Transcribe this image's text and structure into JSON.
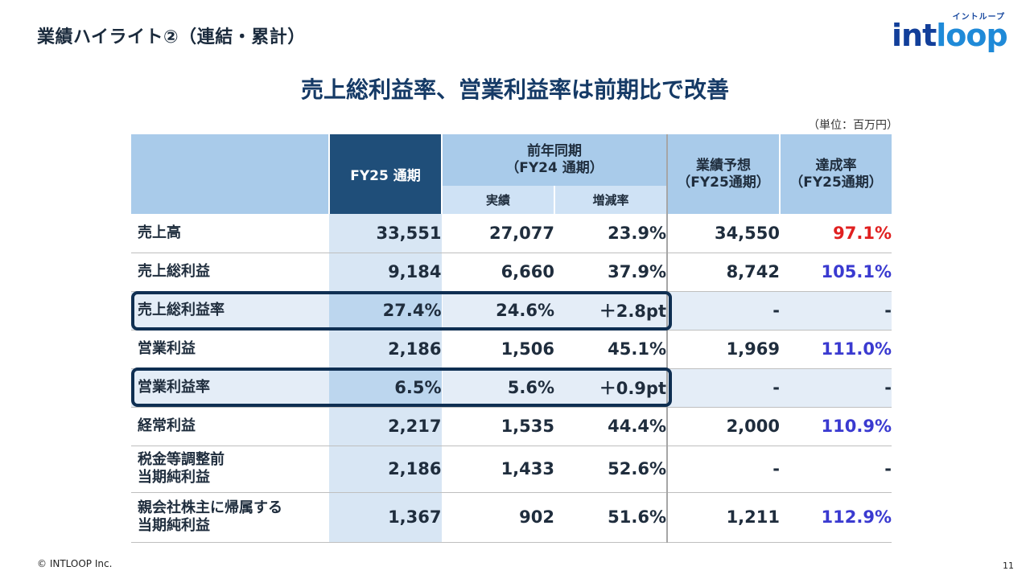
{
  "header": {
    "title": "業績ハイライト②（連結・累計）",
    "headline": "売上総利益率、営業利益率は前期比で改善",
    "unit": "（単位：百万円）"
  },
  "logo": {
    "kana": "イントループ",
    "text_a": "int",
    "text_b": "loop"
  },
  "table": {
    "col_fy25": "FY25 通期",
    "col_prev": "前年同期\n（FY24 通期）",
    "col_prev_a": "前年同期",
    "col_prev_b": "（FY24 通期）",
    "col_actual": "実績",
    "col_change": "増減率",
    "col_forecast_a": "業績予想",
    "col_forecast_b": "（FY25通期）",
    "col_rate_a": "達成率",
    "col_rate_b": "（FY25通期）",
    "rows": [
      {
        "label_a": "売上高",
        "label_b": "",
        "fy25": "33,551",
        "prev": "27,077",
        "change": "23.9%",
        "forecast": "34,550",
        "rate": "97.1%",
        "rate_color": "#e02020"
      },
      {
        "label_a": "売上総利益",
        "label_b": "",
        "fy25": "9,184",
        "prev": "6,660",
        "change": "37.9%",
        "forecast": "8,742",
        "rate": "105.1%",
        "rate_color": "#3a3ad0"
      },
      {
        "label_a": "売上総利益率",
        "label_b": "",
        "fy25": "27.4%",
        "prev": "24.6%",
        "change": "＋2.8pt",
        "forecast": "-",
        "rate": "-",
        "rate_color": "#1f2d3d"
      },
      {
        "label_a": "営業利益",
        "label_b": "",
        "fy25": "2,186",
        "prev": "1,506",
        "change": "45.1%",
        "forecast": "1,969",
        "rate": "111.0%",
        "rate_color": "#3a3ad0"
      },
      {
        "label_a": "営業利益率",
        "label_b": "",
        "fy25": "6.5%",
        "prev": "5.6%",
        "change": "＋0.9pt",
        "forecast": "-",
        "rate": "-",
        "rate_color": "#1f2d3d"
      },
      {
        "label_a": "経常利益",
        "label_b": "",
        "fy25": "2,217",
        "prev": "1,535",
        "change": "44.4%",
        "forecast": "2,000",
        "rate": "110.9%",
        "rate_color": "#3a3ad0"
      },
      {
        "label_a": "税金等調整前",
        "label_b": "当期純利益",
        "fy25": "2,186",
        "prev": "1,433",
        "change": "52.6%",
        "forecast": "-",
        "rate": "-",
        "rate_color": "#1f2d3d"
      },
      {
        "label_a": "親会社株主に帰属する",
        "label_b": "当期純利益",
        "fy25": "1,367",
        "prev": "902",
        "change": "51.6%",
        "forecast": "1,211",
        "rate": "112.9%",
        "rate_color": "#3a3ad0"
      }
    ]
  },
  "footer": {
    "copyright": "© INTLOOP Inc.",
    "page": "11"
  }
}
